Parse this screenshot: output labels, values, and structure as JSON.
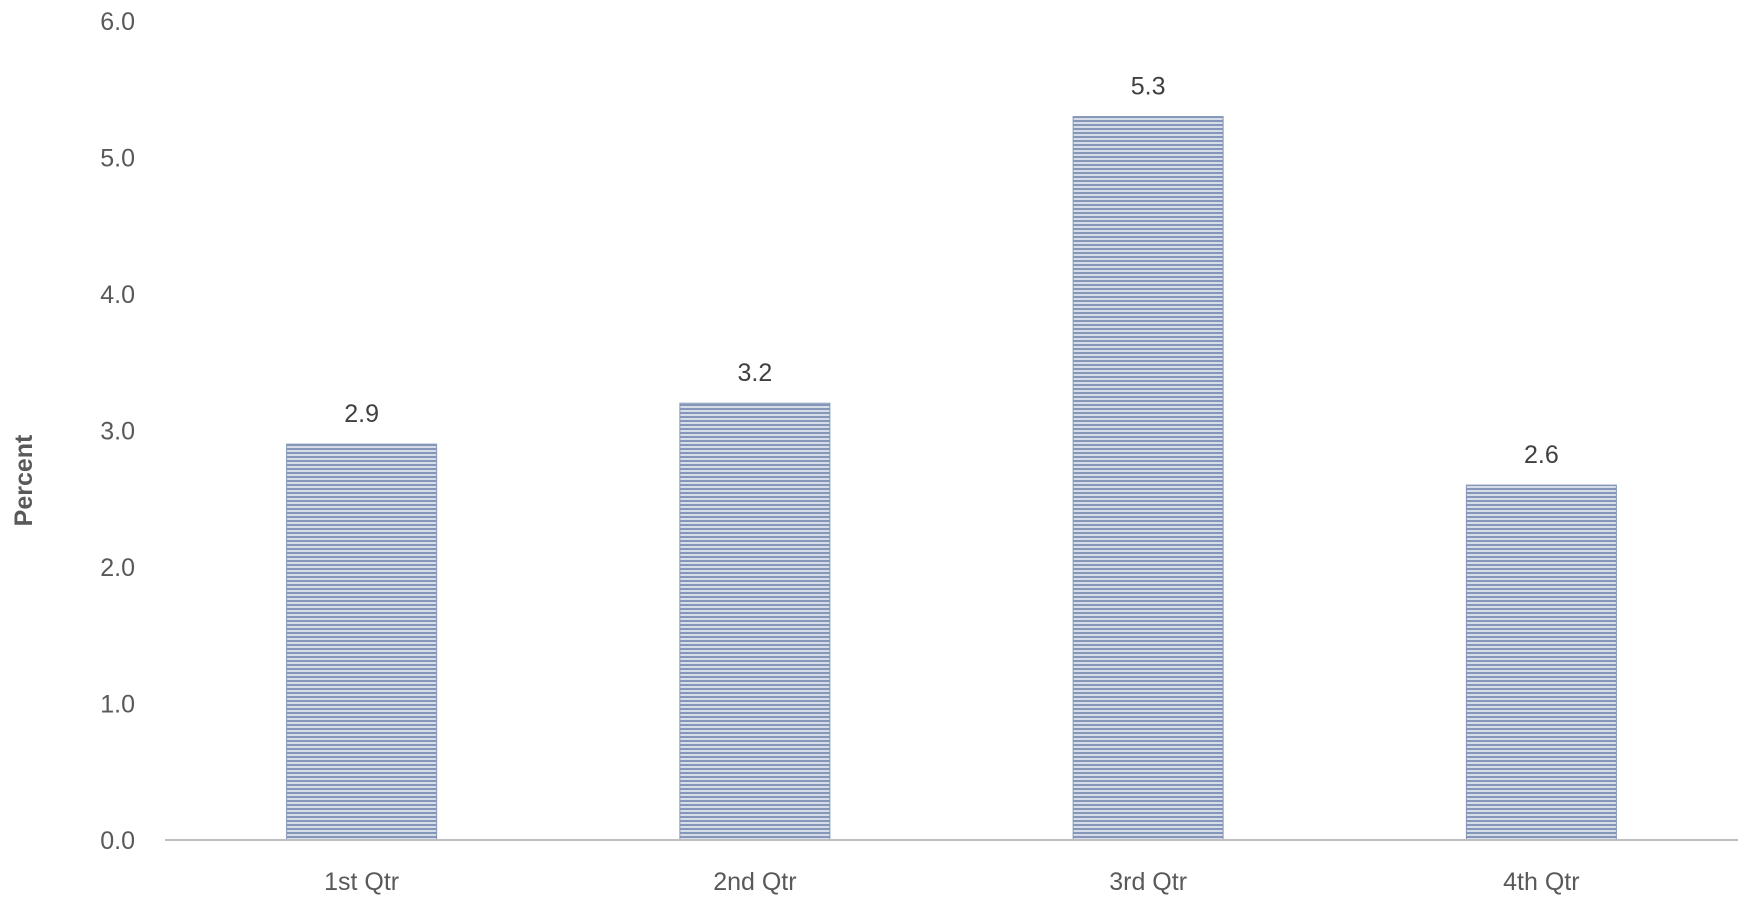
{
  "chart_data": {
    "type": "bar",
    "title": "",
    "xlabel": "",
    "ylabel": "Percent",
    "categories": [
      "1st Qtr",
      "2nd Qtr",
      "3rd Qtr",
      "4th Qtr"
    ],
    "values": [
      2.9,
      3.2,
      5.3,
      2.6
    ],
    "data_labels": [
      "2.9",
      "3.2",
      "5.3",
      "2.6"
    ],
    "ylim": [
      0,
      6
    ],
    "yticks": [
      0,
      1,
      2,
      3,
      4,
      5,
      6
    ],
    "ytick_labels": [
      "0.0",
      "1.0",
      "2.0",
      "3.0",
      "4.0",
      "5.0",
      "6.0"
    ],
    "grid": false,
    "legend": "none",
    "colors": {
      "bar_fill": "#8497B8",
      "bar_stripe_light": "#D6DCE8",
      "axis_line": "#BFBFBF"
    }
  }
}
